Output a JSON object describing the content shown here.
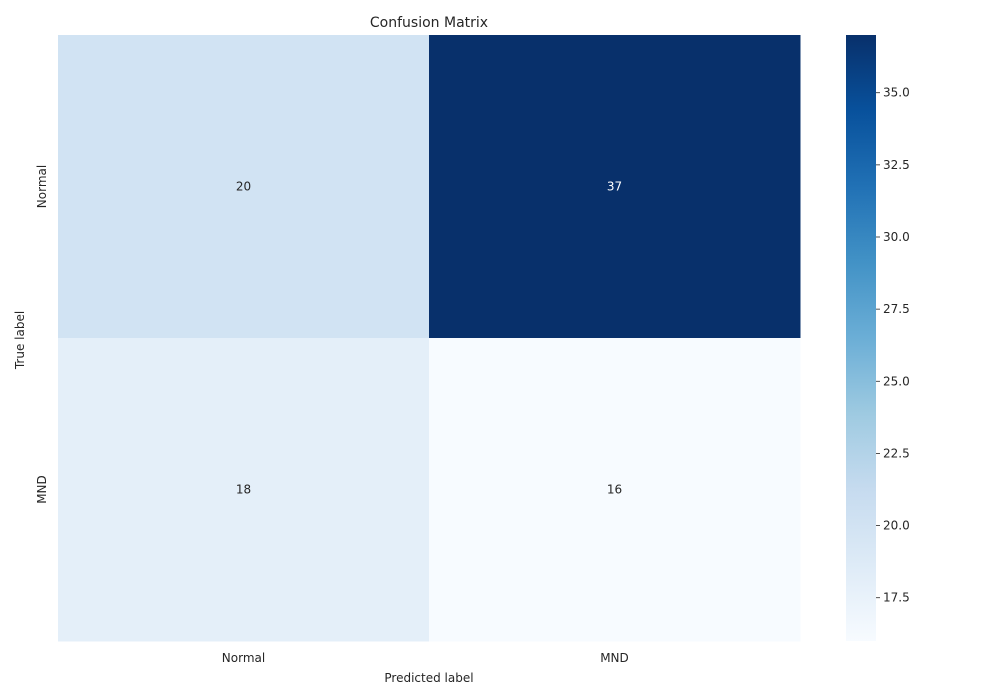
{
  "chart_data": {
    "type": "heatmap",
    "title": "Confusion Matrix",
    "xlabel": "Predicted label",
    "ylabel": "True label",
    "x_categories": [
      "Normal",
      "MND"
    ],
    "y_categories": [
      "Normal",
      "MND"
    ],
    "values": [
      [
        20,
        37
      ],
      [
        18,
        16
      ]
    ],
    "colormap": "Blues",
    "colorbar": {
      "range": [
        16,
        37
      ],
      "ticks": [
        17.5,
        20.0,
        22.5,
        25.0,
        27.5,
        30.0,
        32.5,
        35.0
      ],
      "tick_labels": [
        "17.5",
        "20.0",
        "22.5",
        "25.0",
        "27.5",
        "30.0",
        "32.5",
        "35.0"
      ],
      "colors": [
        "#f7fbff",
        "#deebf7",
        "#c6dbef",
        "#9ecae1",
        "#6baed6",
        "#4292c6",
        "#2171b5",
        "#08519c",
        "#08306b"
      ]
    },
    "grid": false,
    "annotations": true
  }
}
